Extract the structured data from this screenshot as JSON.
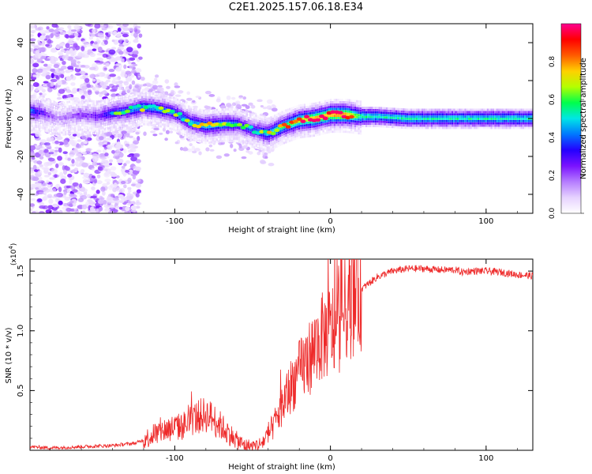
{
  "title": "C2E1.2025.157.06.18.E34",
  "colors": {
    "snr_line": "#ee2a2a",
    "colormap": [
      "#ffffff",
      "#e6d2ff",
      "#b57cff",
      "#7a12ff",
      "#2400ff",
      "#0077ff",
      "#00e6e6",
      "#00ff4c",
      "#b4ff00",
      "#ffd000",
      "#ff5a00",
      "#ff0000",
      "#ff0090"
    ]
  },
  "chart_data": [
    {
      "type": "heatmap",
      "title": "C2E1.2025.157.06.18.E34",
      "xlabel": "Height of straight line (km)",
      "ylabel": "Frequency (Hz)",
      "xlim": [
        -193,
        130
      ],
      "ylim": [
        -50,
        50
      ],
      "xticks": [
        -100,
        0,
        100
      ],
      "yticks": [
        -40,
        -20,
        0,
        20,
        40
      ],
      "colorbar": {
        "label": "Normalized spectral amplitude",
        "range": [
          0,
          1
        ],
        "ticks": [
          "0.0",
          "0.2",
          "0.4",
          "0.6",
          "0.8"
        ]
      },
      "ridge": {
        "x": [
          -193,
          -185,
          -175,
          -160,
          -150,
          -140,
          -130,
          -120,
          -110,
          -100,
          -90,
          -80,
          -70,
          -60,
          -50,
          -40,
          -30,
          -20,
          -10,
          0,
          10,
          20,
          30,
          50,
          80,
          100,
          130
        ],
        "freq": [
          4,
          3,
          0,
          2,
          1,
          3,
          4,
          6,
          5,
          3,
          -2,
          -4,
          -3,
          -3,
          -6,
          -8,
          -4,
          -1,
          0,
          2,
          2,
          1,
          1,
          0,
          0,
          0,
          0
        ],
        "amplitude": [
          0.45,
          0.3,
          0.15,
          0.25,
          0.3,
          0.4,
          0.45,
          0.5,
          0.5,
          0.45,
          0.5,
          0.55,
          0.55,
          0.45,
          0.4,
          0.55,
          0.65,
          0.75,
          0.85,
          0.9,
          0.9,
          0.6,
          0.55,
          0.55,
          0.55,
          0.55,
          0.55
        ]
      },
      "noise_region": {
        "x": [
          -193,
          -130
        ],
        "freq_range": [
          -50,
          50
        ]
      },
      "grid": false
    },
    {
      "type": "line",
      "xlabel": "Height of straight line (km)",
      "ylabel": "SNR (10 * v/v)",
      "y_multiplier": "(x10",
      "y_multiplier_exp": "4",
      "y_multiplier_close": ")",
      "xlim": [
        -193,
        130
      ],
      "ylim": [
        0,
        1.6
      ],
      "xticks": [
        -100,
        0,
        100
      ],
      "yticks": [
        0.5,
        1.0,
        1.5
      ],
      "series": [
        {
          "x": [
            -193,
            -180,
            -160,
            -140,
            -125,
            -115,
            -105,
            -95,
            -90,
            -85,
            -80,
            -75,
            -70,
            -65,
            -60,
            -55,
            -50,
            -45,
            -40,
            -35,
            -30,
            -25,
            -20,
            -15,
            -10,
            -5,
            0,
            5,
            10,
            20,
            30,
            40,
            50,
            60,
            70,
            80,
            85,
            90,
            100,
            110,
            120,
            130
          ],
          "y": [
            0.03,
            0.02,
            0.03,
            0.04,
            0.06,
            0.12,
            0.18,
            0.2,
            0.25,
            0.28,
            0.3,
            0.26,
            0.2,
            0.14,
            0.08,
            0.04,
            0.03,
            0.05,
            0.12,
            0.25,
            0.4,
            0.55,
            0.65,
            0.75,
            0.85,
            0.95,
            1.0,
            1.05,
            1.2,
            1.35,
            1.45,
            1.5,
            1.52,
            1.52,
            1.51,
            1.51,
            1.49,
            1.5,
            1.5,
            1.49,
            1.47,
            1.46
          ]
        }
      ],
      "grid": false
    }
  ]
}
